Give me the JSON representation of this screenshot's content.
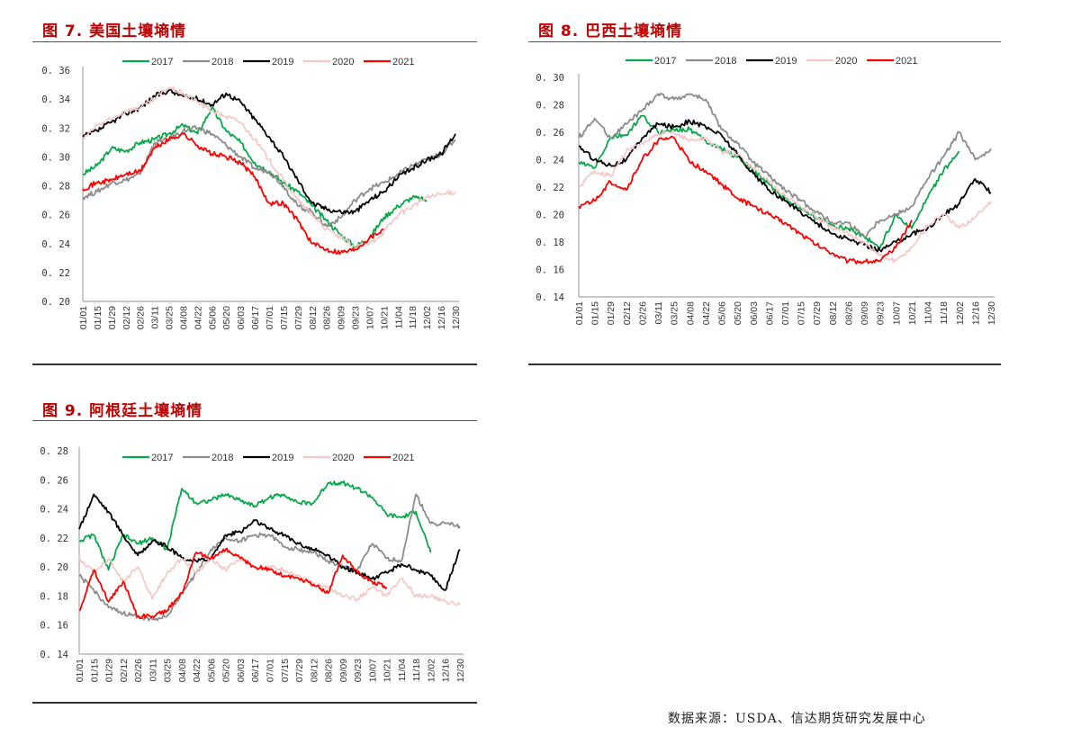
{
  "source_note": "数据来源：USDA、信达期货研究发展中心",
  "colors": {
    "2017": "#0aa84a",
    "2018": "#8c8c8c",
    "2019": "#000000",
    "2020": "#f4c6c6",
    "2021": "#ff0000",
    "title": "#c00000"
  },
  "chart_data": [
    {
      "id": "fig7",
      "type": "line",
      "title": "图 7.  美国土壤墒情",
      "xlabel": "",
      "ylabel": "",
      "legend_position": "top",
      "grid": false,
      "ylim": [
        0.2,
        0.36
      ],
      "yticks": [
        "0.20",
        "0.22",
        "0.24",
        "0.26",
        "0.28",
        "0.30",
        "0.32",
        "0.34",
        "0.36"
      ],
      "ytick_values": [
        0.2,
        0.22,
        0.24,
        0.26,
        0.28,
        0.3,
        0.32,
        0.34,
        0.36
      ],
      "categories": [
        "01/01",
        "01/15",
        "01/29",
        "02/12",
        "02/26",
        "03/11",
        "03/25",
        "04/08",
        "04/22",
        "05/06",
        "05/20",
        "06/03",
        "06/17",
        "07/01",
        "07/15",
        "07/29",
        "08/12",
        "08/26",
        "09/09",
        "09/23",
        "10/07",
        "10/21",
        "11/04",
        "11/18",
        "12/02",
        "12/16",
        "12/30"
      ],
      "series": [
        {
          "name": "2017",
          "values": [
            0.288,
            0.294,
            0.306,
            0.304,
            0.31,
            0.312,
            0.316,
            0.322,
            0.316,
            0.334,
            0.318,
            0.31,
            0.296,
            0.29,
            0.282,
            0.276,
            0.266,
            0.256,
            0.246,
            0.238,
            0.244,
            0.258,
            0.266,
            0.272,
            0.27,
            null,
            null
          ]
        },
        {
          "name": "2018",
          "values": [
            0.272,
            0.276,
            0.282,
            0.284,
            0.288,
            0.31,
            0.312,
            0.318,
            0.32,
            0.316,
            0.308,
            0.3,
            0.292,
            0.29,
            0.28,
            0.266,
            0.262,
            0.252,
            0.258,
            0.27,
            0.278,
            0.282,
            0.288,
            0.294,
            0.298,
            0.302,
            0.312
          ]
        },
        {
          "name": "2019",
          "values": [
            0.314,
            0.318,
            0.324,
            0.33,
            0.334,
            0.342,
            0.346,
            0.342,
            0.34,
            0.336,
            0.344,
            0.338,
            0.326,
            0.314,
            0.3,
            0.284,
            0.268,
            0.264,
            0.262,
            0.262,
            0.27,
            0.276,
            0.286,
            0.292,
            0.298,
            0.302,
            0.316
          ]
        },
        {
          "name": "2020",
          "values": [
            0.312,
            0.322,
            0.326,
            0.332,
            0.334,
            0.34,
            0.348,
            0.344,
            0.338,
            0.332,
            0.328,
            0.324,
            0.312,
            0.298,
            0.284,
            0.27,
            0.26,
            0.25,
            0.244,
            0.238,
            0.24,
            0.248,
            0.26,
            0.266,
            0.272,
            0.274,
            0.276
          ]
        },
        {
          "name": "2021",
          "values": [
            0.278,
            0.282,
            0.284,
            0.288,
            0.29,
            0.306,
            0.312,
            0.316,
            0.308,
            0.302,
            0.3,
            0.296,
            0.286,
            0.268,
            0.268,
            0.256,
            0.24,
            0.236,
            0.234,
            0.236,
            0.244,
            0.25,
            null,
            null,
            null,
            null,
            null
          ]
        }
      ]
    },
    {
      "id": "fig8",
      "type": "line",
      "title": "图 8.  巴西土壤墒情",
      "xlabel": "",
      "ylabel": "",
      "legend_position": "top",
      "grid": false,
      "ylim": [
        0.14,
        0.3
      ],
      "yticks": [
        "0.14",
        "0.16",
        "0.18",
        "0.20",
        "0.22",
        "0.24",
        "0.26",
        "0.28",
        "0.30"
      ],
      "ytick_values": [
        0.14,
        0.16,
        0.18,
        0.2,
        0.22,
        0.24,
        0.26,
        0.28,
        0.3
      ],
      "categories": [
        "01/01",
        "01/15",
        "01/29",
        "02/12",
        "02/26",
        "03/11",
        "03/25",
        "04/08",
        "04/22",
        "05/06",
        "05/20",
        "06/03",
        "06/17",
        "07/01",
        "07/15",
        "07/29",
        "08/12",
        "08/26",
        "09/09",
        "09/23",
        "10/07",
        "10/21",
        "11/04",
        "11/18",
        "12/02",
        "12/16",
        "12/30"
      ],
      "series": [
        {
          "name": "2017",
          "values": [
            0.238,
            0.234,
            0.256,
            0.258,
            0.272,
            0.26,
            0.262,
            0.262,
            0.254,
            0.248,
            0.242,
            0.232,
            0.222,
            0.212,
            0.204,
            0.198,
            0.192,
            0.19,
            0.184,
            0.176,
            0.2,
            0.19,
            0.212,
            0.232,
            0.246,
            null,
            null
          ]
        },
        {
          "name": "2018",
          "values": [
            0.256,
            0.27,
            0.256,
            0.266,
            0.276,
            0.288,
            0.284,
            0.288,
            0.284,
            0.262,
            0.252,
            0.238,
            0.228,
            0.218,
            0.21,
            0.202,
            0.194,
            0.194,
            0.184,
            0.196,
            0.2,
            0.206,
            0.226,
            0.242,
            0.26,
            0.24,
            0.248
          ]
        },
        {
          "name": "2019",
          "values": [
            0.25,
            0.24,
            0.236,
            0.24,
            0.256,
            0.266,
            0.264,
            0.268,
            0.264,
            0.258,
            0.244,
            0.23,
            0.218,
            0.21,
            0.202,
            0.194,
            0.186,
            0.182,
            0.178,
            0.174,
            0.18,
            0.186,
            0.19,
            0.2,
            0.208,
            0.226,
            0.216
          ]
        },
        {
          "name": "2020",
          "values": [
            0.22,
            0.232,
            0.228,
            0.246,
            0.252,
            0.258,
            0.26,
            0.254,
            0.256,
            0.246,
            0.244,
            0.234,
            0.224,
            0.214,
            0.206,
            0.198,
            0.19,
            0.186,
            0.18,
            0.17,
            0.166,
            0.176,
            0.192,
            0.2,
            0.19,
            0.198,
            0.21
          ]
        },
        {
          "name": "2021",
          "values": [
            0.206,
            0.21,
            0.224,
            0.218,
            0.24,
            0.254,
            0.256,
            0.238,
            0.232,
            0.222,
            0.212,
            0.206,
            0.2,
            0.194,
            0.186,
            0.178,
            0.172,
            0.166,
            0.166,
            0.166,
            0.176,
            0.196,
            null,
            null,
            null,
            null,
            null
          ]
        }
      ]
    },
    {
      "id": "fig9",
      "type": "line",
      "title": "图 9.  阿根廷土壤墒情",
      "xlabel": "",
      "ylabel": "",
      "legend_position": "top",
      "grid": false,
      "ylim": [
        0.14,
        0.28
      ],
      "yticks": [
        "0.14",
        "0.16",
        "0.18",
        "0.20",
        "0.22",
        "0.24",
        "0.26",
        "0.28"
      ],
      "ytick_values": [
        0.14,
        0.16,
        0.18,
        0.2,
        0.22,
        0.24,
        0.26,
        0.28
      ],
      "categories": [
        "01/01",
        "01/15",
        "01/29",
        "02/12",
        "02/26",
        "03/11",
        "03/25",
        "04/08",
        "04/22",
        "05/06",
        "05/20",
        "06/03",
        "06/17",
        "07/01",
        "07/15",
        "07/29",
        "08/12",
        "08/26",
        "09/09",
        "09/23",
        "10/07",
        "10/21",
        "11/04",
        "11/18",
        "12/02",
        "12/16",
        "12/30"
      ],
      "series": [
        {
          "name": "2017",
          "values": [
            0.218,
            0.222,
            0.198,
            0.222,
            0.216,
            0.22,
            0.212,
            0.254,
            0.244,
            0.246,
            0.25,
            0.246,
            0.242,
            0.248,
            0.25,
            0.244,
            0.244,
            0.258,
            0.258,
            0.254,
            0.248,
            0.236,
            0.234,
            0.238,
            0.21,
            null,
            null
          ]
        },
        {
          "name": "2018",
          "values": [
            0.194,
            0.184,
            0.172,
            0.168,
            0.166,
            0.164,
            0.166,
            0.182,
            0.196,
            0.212,
            0.22,
            0.218,
            0.222,
            0.222,
            0.214,
            0.212,
            0.21,
            0.204,
            0.2,
            0.198,
            0.216,
            0.206,
            0.204,
            0.25,
            0.23,
            0.23,
            0.228
          ]
        },
        {
          "name": "2019",
          "values": [
            0.226,
            0.25,
            0.238,
            0.222,
            0.208,
            0.218,
            0.214,
            0.206,
            0.204,
            0.206,
            0.222,
            0.224,
            0.232,
            0.226,
            0.222,
            0.216,
            0.212,
            0.208,
            0.2,
            0.196,
            0.192,
            0.196,
            0.202,
            0.198,
            0.194,
            0.184,
            0.212
          ]
        },
        {
          "name": "2020",
          "values": [
            0.206,
            0.196,
            0.206,
            0.19,
            0.2,
            0.178,
            0.196,
            0.206,
            0.196,
            0.206,
            0.198,
            0.206,
            0.2,
            0.2,
            0.198,
            0.194,
            0.188,
            0.186,
            0.18,
            0.178,
            0.186,
            0.18,
            0.192,
            0.18,
            0.18,
            0.176,
            0.174
          ]
        },
        {
          "name": "2021",
          "values": [
            0.17,
            0.198,
            0.176,
            0.19,
            0.166,
            0.166,
            0.17,
            0.182,
            0.21,
            0.206,
            0.212,
            0.206,
            0.2,
            0.198,
            0.194,
            0.192,
            0.188,
            0.182,
            0.208,
            0.196,
            0.19,
            0.186,
            null,
            null,
            null,
            null,
            null
          ]
        }
      ]
    }
  ]
}
